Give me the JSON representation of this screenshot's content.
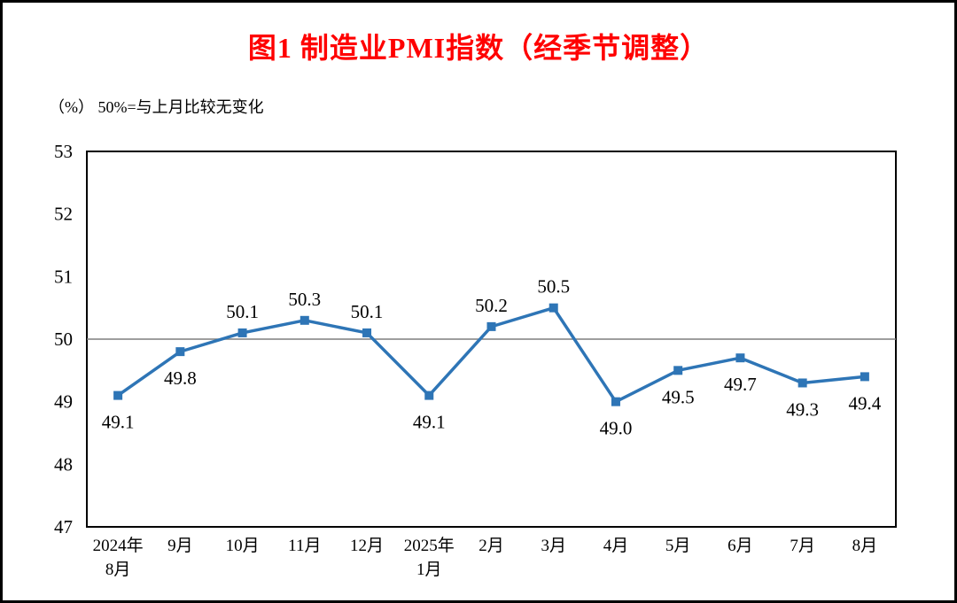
{
  "title": "图1  制造业PMI指数（经季节调整）",
  "unit_label": "（%） 50%=与上月比较无变化",
  "colors": {
    "title": "#ff0000",
    "line": "#2e75b6",
    "axis": "#000000",
    "reference_line": "#7f7f7f"
  },
  "chart_data": {
    "type": "line",
    "title": "图1  制造业PMI指数（经季节调整）",
    "xlabel": "",
    "ylabel": "（%） 50%=与上月比较无变化",
    "ylim": [
      47,
      53
    ],
    "ytick_step": 1,
    "y_tick_labels": [
      "47",
      "48",
      "49",
      "50",
      "51",
      "52",
      "53"
    ],
    "grid": false,
    "legend": "none",
    "reference_line": 50,
    "line_color": "#2e75b6",
    "marker": "square",
    "categories": [
      "2024年\n8月",
      "9月",
      "10月",
      "11月",
      "12月",
      "2025年\n1月",
      "2月",
      "3月",
      "4月",
      "5月",
      "6月",
      "7月",
      "8月"
    ],
    "values": [
      49.1,
      49.8,
      50.1,
      50.3,
      50.1,
      49.1,
      50.2,
      50.5,
      49.0,
      49.5,
      49.7,
      49.3,
      49.4
    ],
    "data_labels": [
      "49.1",
      "49.8",
      "50.1",
      "50.3",
      "50.1",
      "49.1",
      "50.2",
      "50.5",
      "49.0",
      "49.5",
      "49.7",
      "49.3",
      "49.4"
    ],
    "label_positions": [
      "below",
      "below",
      "above",
      "above",
      "above",
      "below",
      "above",
      "above",
      "below",
      "below",
      "below",
      "below",
      "below"
    ]
  }
}
